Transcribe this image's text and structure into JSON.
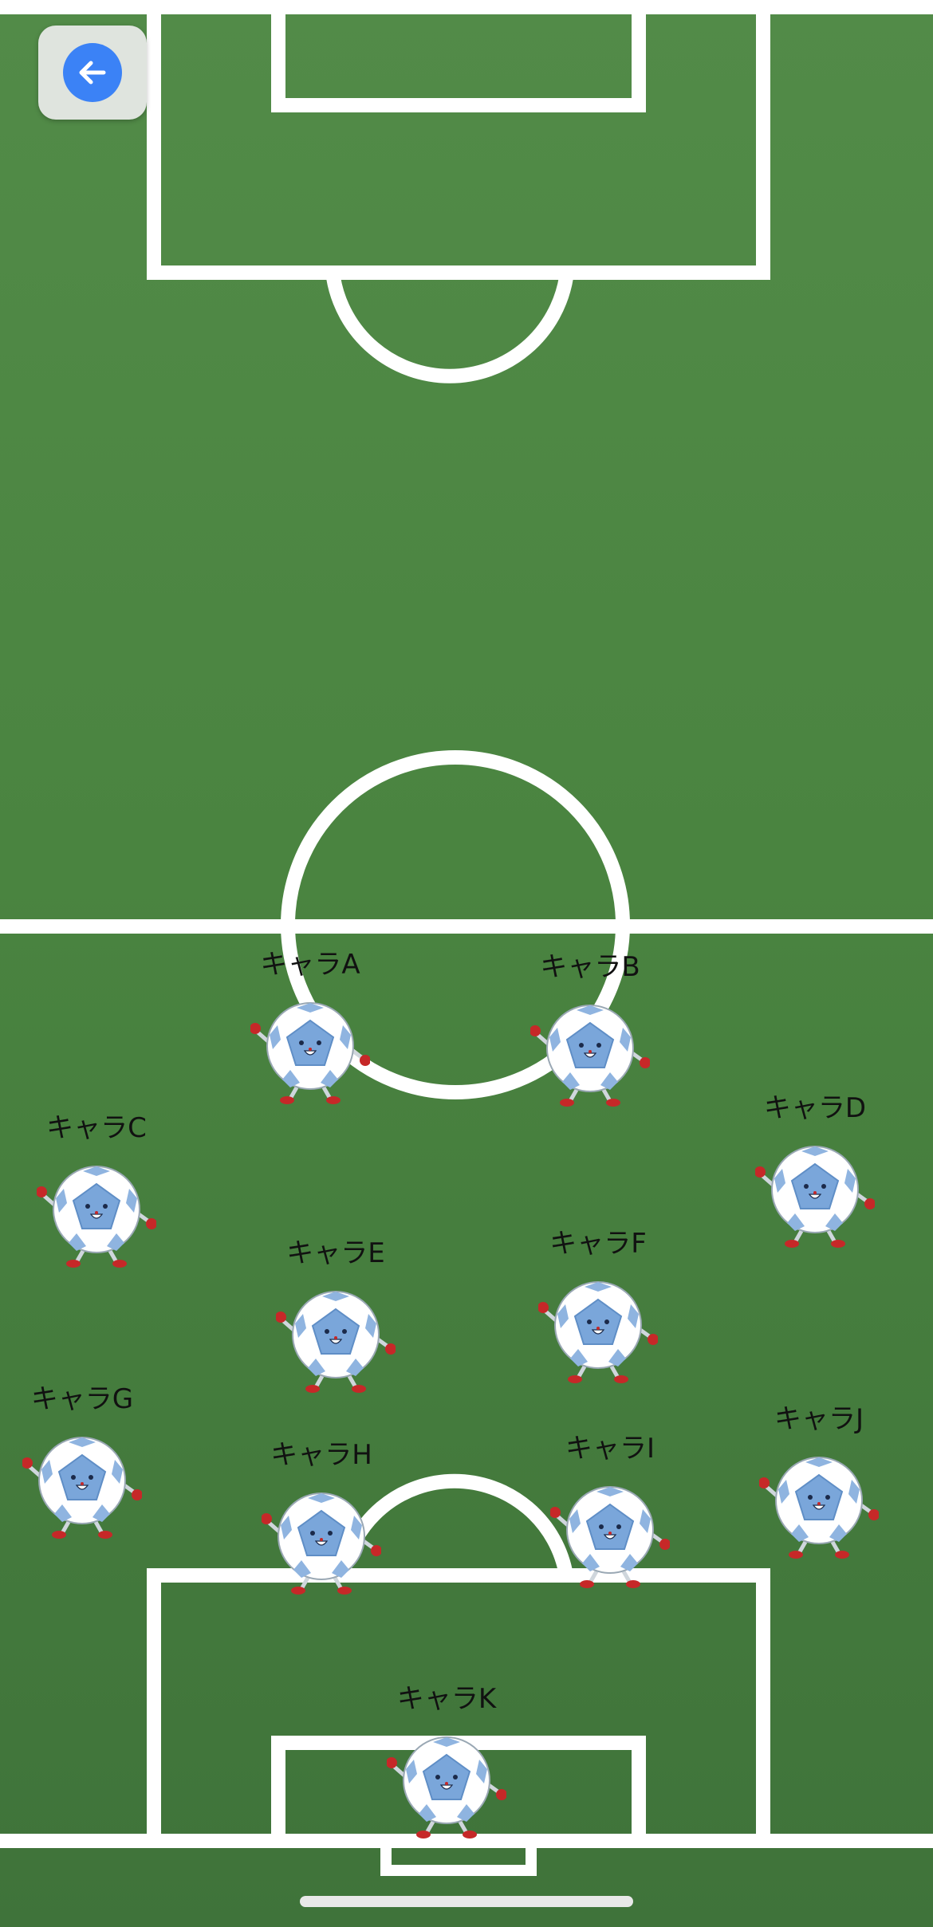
{
  "header": {
    "back_button": {
      "icon": "arrow-left-icon",
      "color": "#3b82f6"
    }
  },
  "pitch": {
    "field_color": "#4a8440",
    "line_color": "#ffffff"
  },
  "players": [
    {
      "id": "a",
      "label": "キャラA"
    },
    {
      "id": "b",
      "label": "キャラB"
    },
    {
      "id": "c",
      "label": "キャラC"
    },
    {
      "id": "d",
      "label": "キャラD"
    },
    {
      "id": "e",
      "label": "キャラE"
    },
    {
      "id": "f",
      "label": "キャラF"
    },
    {
      "id": "g",
      "label": "キャラG"
    },
    {
      "id": "h",
      "label": "キャラH"
    },
    {
      "id": "i",
      "label": "キャラI"
    },
    {
      "id": "j",
      "label": "キャラJ"
    },
    {
      "id": "k",
      "label": "キャラK"
    }
  ],
  "player_icon": "soccer-ball-mascot-icon"
}
